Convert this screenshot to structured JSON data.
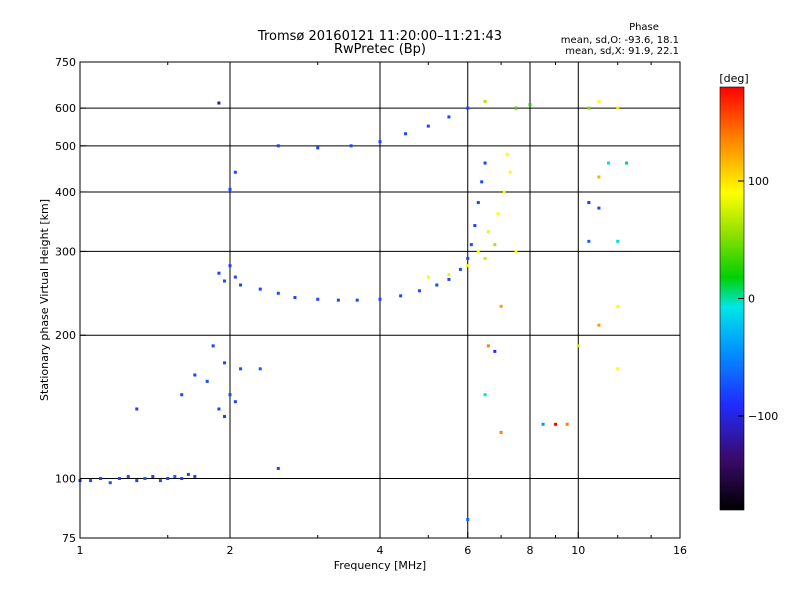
{
  "chart_data": {
    "type": "scatter",
    "title": "Tromsø 20160121 11:20:00–11:21:43",
    "subtitle": "RwPretec (Bp)",
    "xlabel": "Frequency [MHz]",
    "ylabel": "Stationary phase Virtual Height [km]",
    "x_scale": "log",
    "y_scale": "log",
    "xlim": [
      1,
      16
    ],
    "ylim": [
      75,
      750
    ],
    "x_ticks": [
      1,
      2,
      4,
      6,
      8,
      10,
      16
    ],
    "x_tick_labels": [
      "1",
      "2",
      "4",
      "6",
      "8",
      "10",
      "16"
    ],
    "y_ticks": [
      75,
      100,
      200,
      300,
      400,
      500,
      600,
      750
    ],
    "y_tick_labels": [
      "75",
      "100",
      "200",
      "300",
      "400",
      "500",
      "600",
      "750"
    ],
    "grid": true,
    "stats": {
      "heading": "Phase",
      "line_o": "mean, sd,O: -93.6, 18.1",
      "line_x": "mean, sd,X:  91.9, 22.1"
    },
    "colorbar": {
      "label": "[deg]",
      "range": [
        -180,
        180
      ],
      "ticks": [
        100,
        0,
        -100
      ],
      "tick_labels": [
        "100",
        "0",
        "−100"
      ]
    },
    "series": [
      {
        "name": "",
        "points": [
          [
            1.0,
            99,
            -100
          ],
          [
            1.05,
            99,
            -95
          ],
          [
            1.1,
            100,
            -105
          ],
          [
            1.15,
            98,
            -90
          ],
          [
            1.2,
            100,
            -100
          ],
          [
            1.25,
            101,
            -95
          ],
          [
            1.3,
            99,
            -100
          ],
          [
            1.35,
            100,
            -85
          ],
          [
            1.4,
            101,
            -100
          ],
          [
            1.45,
            99,
            -95
          ],
          [
            1.5,
            100,
            -100
          ],
          [
            1.55,
            101,
            -80
          ],
          [
            1.6,
            100,
            -100
          ],
          [
            1.65,
            102,
            -95
          ],
          [
            1.7,
            101,
            -100
          ],
          [
            1.3,
            140,
            -100
          ],
          [
            1.6,
            150,
            -95
          ],
          [
            1.7,
            165,
            -100
          ],
          [
            1.8,
            160,
            -90
          ],
          [
            1.9,
            140,
            -100
          ],
          [
            1.95,
            135,
            -105
          ],
          [
            2.0,
            150,
            -95
          ],
          [
            2.05,
            145,
            -100
          ],
          [
            2.1,
            170,
            -90
          ],
          [
            2.3,
            170,
            -80
          ],
          [
            1.85,
            190,
            -100
          ],
          [
            1.95,
            175,
            -95
          ],
          [
            1.9,
            270,
            -100
          ],
          [
            1.95,
            260,
            -95
          ],
          [
            2.0,
            280,
            -105
          ],
          [
            2.05,
            265,
            -100
          ],
          [
            2.1,
            255,
            -95
          ],
          [
            2.3,
            250,
            -100
          ],
          [
            2.5,
            245,
            -95
          ],
          [
            2.7,
            240,
            -100
          ],
          [
            3.0,
            238,
            -100
          ],
          [
            3.3,
            237,
            -95
          ],
          [
            3.6,
            237,
            -100
          ],
          [
            4.0,
            238,
            -100
          ],
          [
            4.4,
            242,
            -95
          ],
          [
            4.8,
            248,
            -90
          ],
          [
            5.2,
            255,
            -95
          ],
          [
            5.5,
            262,
            -100
          ],
          [
            5.8,
            275,
            -95
          ],
          [
            6.0,
            290,
            -100
          ],
          [
            6.1,
            310,
            -95
          ],
          [
            6.2,
            340,
            -100
          ],
          [
            6.3,
            380,
            -100
          ],
          [
            6.4,
            420,
            -95
          ],
          [
            6.5,
            460,
            -100
          ],
          [
            5.0,
            265,
            100
          ],
          [
            5.5,
            268,
            110
          ],
          [
            6.0,
            280,
            95
          ],
          [
            6.3,
            300,
            100
          ],
          [
            6.6,
            330,
            90
          ],
          [
            6.9,
            360,
            100
          ],
          [
            7.1,
            400,
            95
          ],
          [
            7.3,
            440,
            100
          ],
          [
            7.2,
            480,
            100
          ],
          [
            6.8,
            310,
            60
          ],
          [
            6.5,
            290,
            75
          ],
          [
            7.5,
            300,
            100
          ],
          [
            2.5,
            500,
            -100
          ],
          [
            3.0,
            495,
            -100
          ],
          [
            3.5,
            500,
            -95
          ],
          [
            4.0,
            510,
            -100
          ],
          [
            4.5,
            530,
            -95
          ],
          [
            5.0,
            550,
            -100
          ],
          [
            5.5,
            575,
            -100
          ],
          [
            6.0,
            600,
            -100
          ],
          [
            6.5,
            620,
            60
          ],
          [
            2.0,
            405,
            -100
          ],
          [
            2.05,
            440,
            -95
          ],
          [
            7.5,
            600,
            20
          ],
          [
            8.0,
            610,
            10
          ],
          [
            7.0,
            230,
            140
          ],
          [
            6.6,
            190,
            150
          ],
          [
            6.8,
            185,
            -120
          ],
          [
            6.5,
            150,
            -20
          ],
          [
            7.0,
            125,
            150
          ],
          [
            8.5,
            130,
            -50
          ],
          [
            9.0,
            130,
            180
          ],
          [
            9.5,
            130,
            150
          ],
          [
            10.0,
            190,
            80
          ],
          [
            11.0,
            620,
            100
          ],
          [
            12.0,
            600,
            110
          ],
          [
            11.5,
            460,
            -20
          ],
          [
            12.5,
            460,
            -10
          ],
          [
            11.0,
            210,
            140
          ],
          [
            12.0,
            230,
            100
          ],
          [
            11.0,
            370,
            -100
          ],
          [
            10.5,
            380,
            -110
          ],
          [
            12.0,
            315,
            -20
          ],
          [
            10.5,
            600,
            40
          ],
          [
            10.5,
            315,
            -80
          ],
          [
            11.0,
            430,
            130
          ],
          [
            12.0,
            170,
            100
          ],
          [
            1.9,
            615,
            -140
          ],
          [
            2.5,
            105,
            -100
          ],
          [
            6.0,
            82,
            -80
          ]
        ]
      }
    ]
  }
}
